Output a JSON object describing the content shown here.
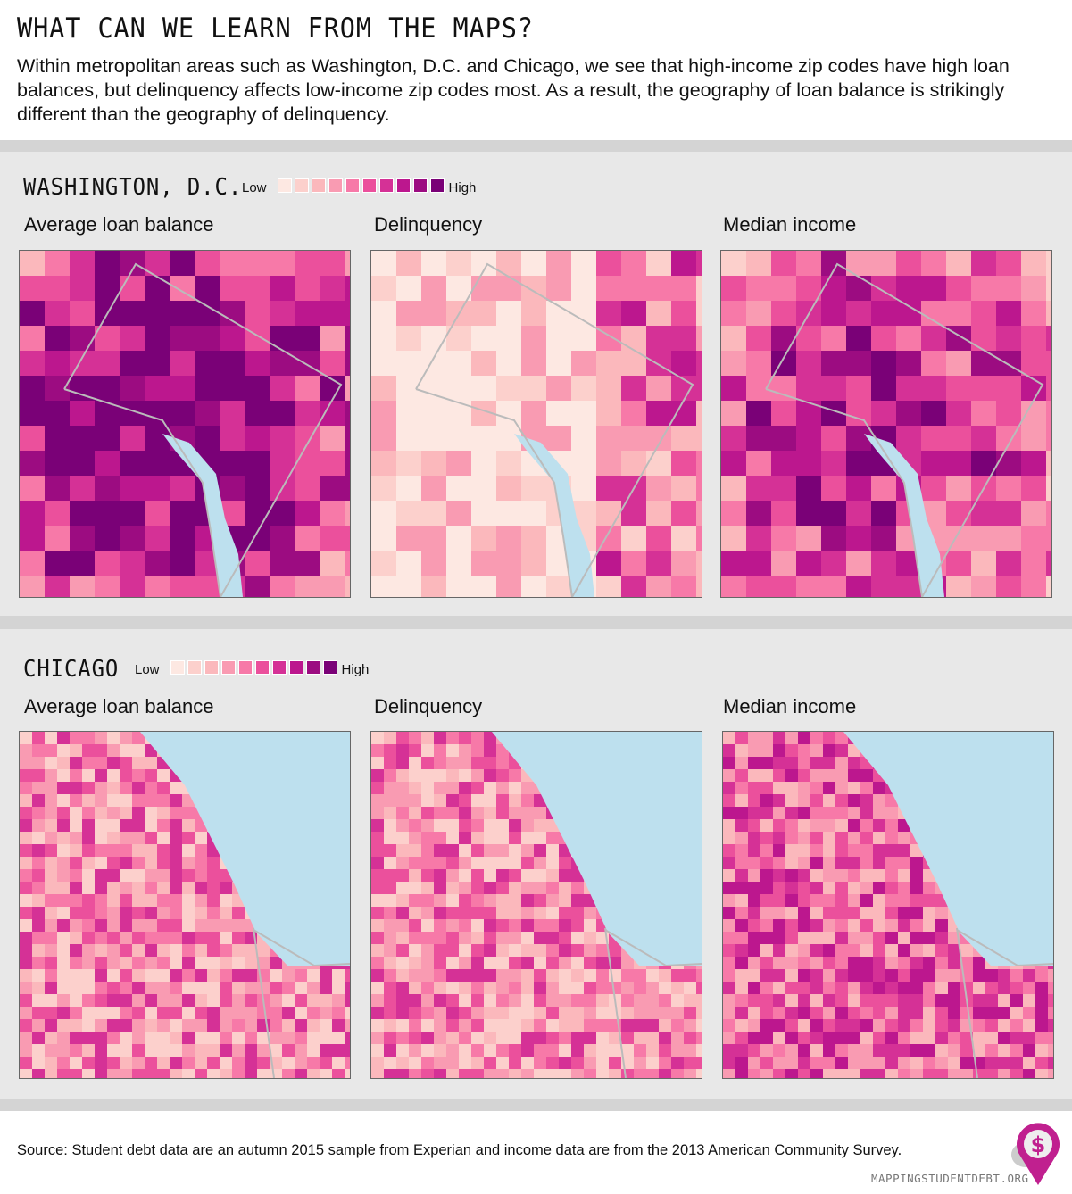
{
  "header": {
    "title": "WHAT CAN WE LEARN FROM THE MAPS?",
    "intro": "Within metropolitan areas such as Washington, D.C. and Chicago, we see that high-income zip codes have high loan balances, but delinquency affects low-income zip codes most. As a result, the geography of loan balance is strikingly different than the geography of delinquency."
  },
  "legend": {
    "low": "Low",
    "high": "High",
    "colors": [
      "#fde8e2",
      "#fcd0cc",
      "#fbb8bc",
      "#f99bb2",
      "#f779a8",
      "#eb509c",
      "#d53196",
      "#bc178e",
      "#9c0c81",
      "#7a0177"
    ]
  },
  "water_color": "#bde0ee",
  "sections": [
    {
      "city": "WASHINGTON, D.C.",
      "maps": [
        {
          "title": "Average loan balance"
        },
        {
          "title": "Delinquency"
        },
        {
          "title": "Median income"
        }
      ]
    },
    {
      "city": "CHICAGO",
      "maps": [
        {
          "title": "Average loan balance"
        },
        {
          "title": "Delinquency"
        },
        {
          "title": "Median income"
        }
      ]
    }
  ],
  "footer": {
    "source": "Source: Student debt data are an autumn 2015 sample from Experian and income data are from the 2013 American Community Survey.",
    "logo_text": "MAPPINGSTUDENTDEBT.ORG"
  }
}
